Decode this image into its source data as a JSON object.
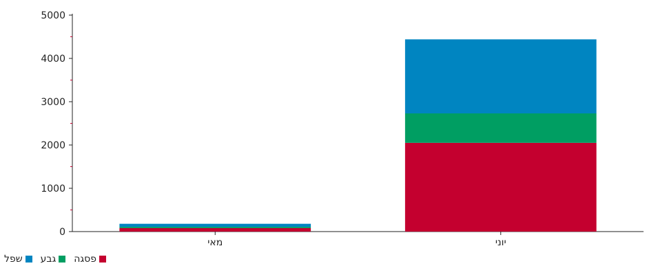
{
  "chart_data": {
    "type": "bar",
    "stacked": true,
    "categories": [
      "מאי",
      "יוני"
    ],
    "series": [
      {
        "name": "פסגה",
        "color": "#c4002f",
        "values": [
          80,
          2050
        ]
      },
      {
        "name": "גבע",
        "color": "#009e62",
        "values": [
          30,
          680
        ]
      },
      {
        "name": "שפל",
        "color": "#0085c1",
        "values": [
          70,
          1710
        ]
      }
    ],
    "ylim": [
      0,
      5000
    ],
    "yticks": [
      "0",
      "1000",
      "2000",
      "3000",
      "4000",
      "5000"
    ],
    "xlabel": "",
    "ylabel": "",
    "legend_position": "bottom-left"
  }
}
